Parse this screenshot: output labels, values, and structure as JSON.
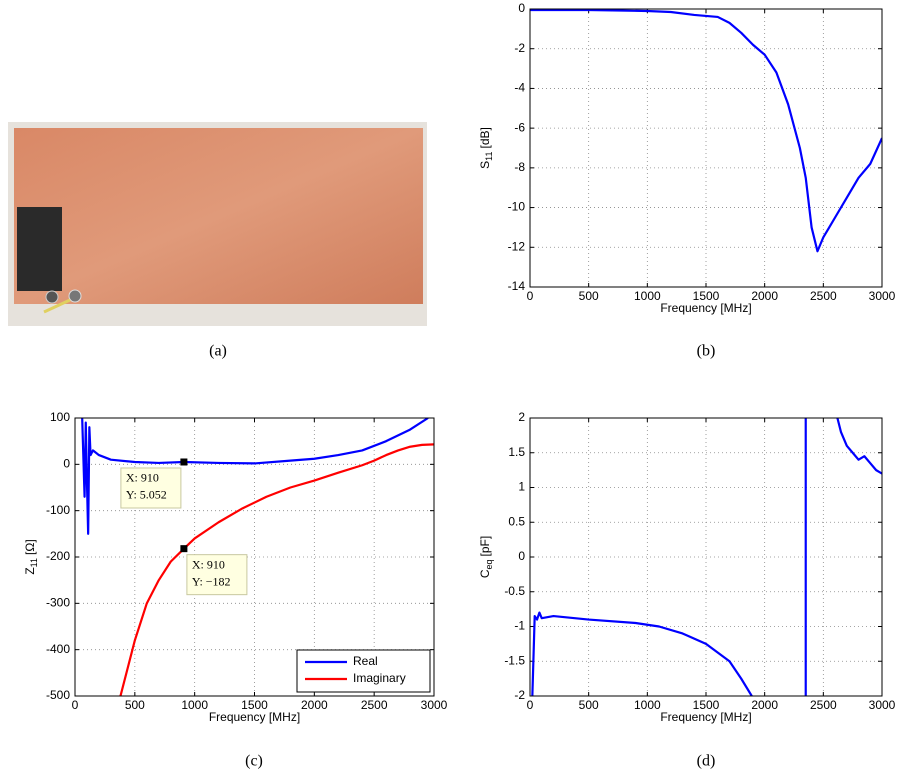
{
  "captions": [
    "(a)",
    "(b)",
    "(c)",
    "(d)"
  ],
  "chart_data": [
    {
      "type": "line",
      "xlabel": "Frequency [MHz]",
      "ylabel": {
        "base": "S",
        "sub": "11",
        "unit": "[dB]"
      },
      "xlim": [
        0,
        3000
      ],
      "xticks": [
        0,
        500,
        1000,
        1500,
        2000,
        2500,
        3000
      ],
      "ylim": [
        -14,
        0
      ],
      "yticks": [
        -14,
        -12,
        -10,
        -8,
        -6,
        -4,
        -2,
        0
      ],
      "grid": true,
      "series": [
        {
          "color": "#0000ff",
          "x": [
            0,
            500,
            1000,
            1200,
            1400,
            1500,
            1600,
            1700,
            1800,
            1900,
            2000,
            2100,
            2200,
            2300,
            2350,
            2400,
            2450,
            2500,
            2550,
            2600,
            2700,
            2800,
            2900,
            3000
          ],
          "values": [
            -0.05,
            -0.05,
            -0.1,
            -0.15,
            -0.3,
            -0.35,
            -0.4,
            -0.7,
            -1.2,
            -1.8,
            -2.3,
            -3.2,
            -4.8,
            -7,
            -8.5,
            -11,
            -12.2,
            -11.5,
            -11,
            -10.5,
            -9.5,
            -8.5,
            -7.8,
            -6.5
          ]
        }
      ]
    },
    {
      "type": "line",
      "xlabel": "Frequency [MHz]",
      "ylabel": {
        "base": "Z",
        "sub": "11",
        "unit": "[Ω]"
      },
      "xlim": [
        0,
        3000
      ],
      "xticks": [
        0,
        500,
        1000,
        1500,
        2000,
        2500,
        3000
      ],
      "ylim": [
        -500,
        100
      ],
      "yticks": [
        -500,
        -400,
        -300,
        -200,
        -100,
        0,
        100
      ],
      "grid": true,
      "legend": "lower right",
      "series": [
        {
          "name": "Real",
          "color": "#0000ff",
          "x": [
            60,
            80,
            90,
            100,
            110,
            120,
            130,
            150,
            200,
            300,
            500,
            700,
            910,
            1200,
            1500,
            1800,
            2000,
            2200,
            2400,
            2600,
            2800,
            2950
          ],
          "values": [
            100,
            -70,
            90,
            -40,
            -150,
            80,
            20,
            30,
            20,
            10,
            5,
            3,
            5.052,
            3,
            2,
            8,
            12,
            20,
            30,
            50,
            75,
            100
          ]
        },
        {
          "name": "Imaginary",
          "color": "#ff0000",
          "x": [
            380,
            500,
            600,
            700,
            800,
            910,
            1000,
            1200,
            1400,
            1600,
            1800,
            2000,
            2200,
            2400,
            2500,
            2600,
            2700,
            2800,
            2900,
            3000
          ],
          "values": [
            -500,
            -380,
            -300,
            -250,
            -210,
            -182,
            -160,
            -125,
            -95,
            -70,
            -50,
            -35,
            -18,
            -2,
            8,
            20,
            30,
            38,
            42,
            43
          ]
        }
      ],
      "annotations": [
        {
          "x": 910,
          "y": 5.052,
          "text": [
            "X: 910",
            "Y: 5.052"
          ]
        },
        {
          "x": 910,
          "y": -182,
          "text": [
            "X: 910",
            "Y: −182"
          ]
        }
      ]
    },
    {
      "type": "line",
      "xlabel": "Frequency [MHz]",
      "ylabel": {
        "base": "C",
        "sub": "eq",
        "unit": "[pF]"
      },
      "xlim": [
        0,
        3000
      ],
      "xticks": [
        0,
        500,
        1000,
        1500,
        2000,
        2500,
        3000
      ],
      "ylim": [
        -2,
        2
      ],
      "yticks": [
        -2,
        -1.5,
        -1,
        -0.5,
        0,
        0.5,
        1,
        1.5,
        2
      ],
      "grid": true,
      "series": [
        {
          "color": "#0000ff",
          "x": [
            20,
            40,
            60,
            80,
            100,
            200,
            500,
            900,
            1100,
            1300,
            1500,
            1700,
            1800,
            1890,
            2100,
            2350,
            2350,
            2500,
            2620,
            2650,
            2700,
            2750,
            2800,
            2850,
            2900,
            2950,
            3000
          ],
          "values": [
            -2,
            -0.85,
            -0.9,
            -0.8,
            -0.88,
            -0.85,
            -0.9,
            -0.95,
            -1.0,
            -1.1,
            -1.25,
            -1.5,
            -1.75,
            -2,
            null,
            -2,
            2,
            null,
            2,
            1.8,
            1.6,
            1.5,
            1.4,
            1.45,
            1.35,
            1.25,
            1.2
          ]
        }
      ]
    }
  ]
}
